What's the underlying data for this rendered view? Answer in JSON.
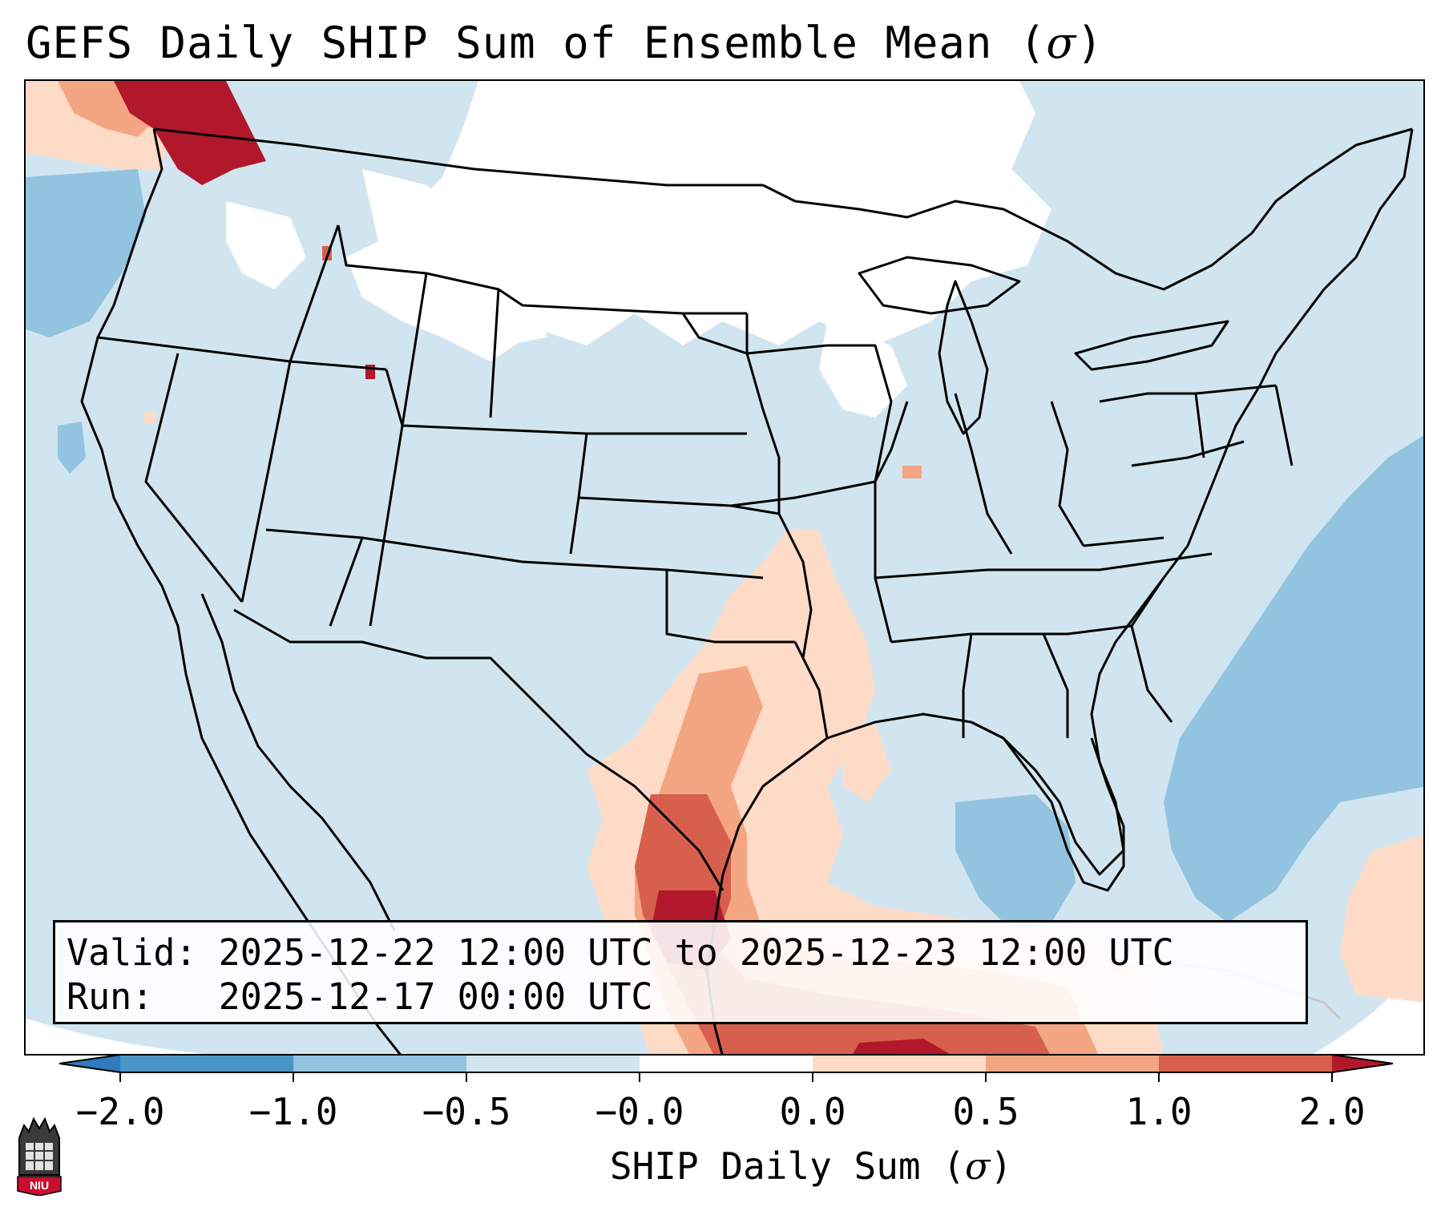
{
  "title": {
    "text": "GEFS Daily SHIP Sum of Ensemble Mean (",
    "symbol": "σ",
    "close": ")"
  },
  "info": {
    "valid_label": "Valid:",
    "valid_value": "2025-12-22 12:00 UTC to 2025-12-23 12:00 UTC",
    "run_label": "Run:",
    "run_value": "2025-12-17 00:00 UTC"
  },
  "colorbar": {
    "ticks": [
      "−2.0",
      "−1.0",
      "−0.5",
      "−0.0",
      "0.0",
      "0.5",
      "1.0",
      "2.0"
    ],
    "colors": [
      "#2f7bbd",
      "#4a94c8",
      "#92c3df",
      "#d1e5f0",
      "#ffffff",
      "#fddbc7",
      "#f4a582",
      "#d6604d",
      "#b2182b"
    ],
    "label_text": "SHIP Daily Sum (",
    "label_symbol": "σ",
    "label_close": ")"
  },
  "logo": {
    "text": "NIU"
  },
  "map_colors": {
    "background": "#d1e5f0",
    "neutral": "#ffffff",
    "light_blue": "#92c3df",
    "light_red": "#fddbc7",
    "mid_red": "#f4a582",
    "red": "#d6604d",
    "dark_red": "#b2182b"
  }
}
